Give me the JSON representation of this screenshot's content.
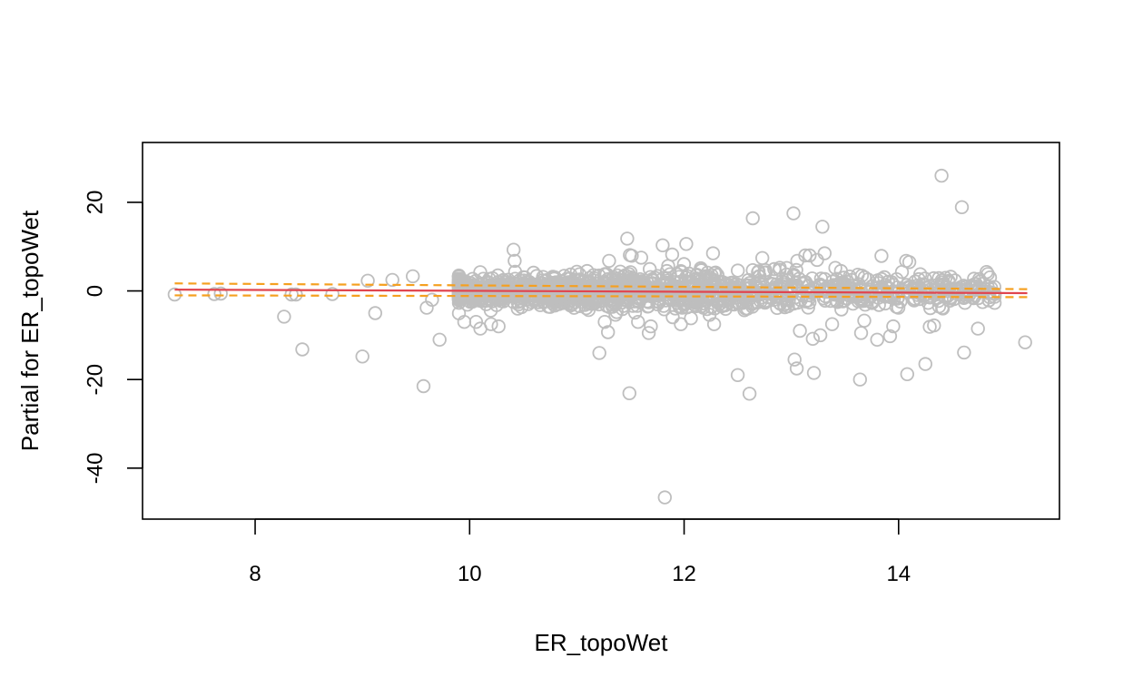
{
  "chart_data": {
    "type": "scatter",
    "title": "",
    "xlabel": "ER_topoWet",
    "ylabel": "Partial for ER_topoWet",
    "xlim": [
      6.95,
      15.5
    ],
    "ylim": [
      -51.5,
      33.5
    ],
    "x_ticks": [
      8,
      10,
      12,
      14
    ],
    "y_ticks": [
      -40,
      -20,
      0,
      20
    ],
    "grid": false,
    "legend": "none",
    "colors": {
      "points": "#bebebe",
      "fit_line": "#e0454f",
      "confidence_band": "#f5a020"
    },
    "fit_line": {
      "x": [
        7.25,
        15.2
      ],
      "y": [
        0.3,
        -0.5
      ]
    },
    "confidence_upper": {
      "x": [
        7.25,
        15.2
      ],
      "y": [
        1.7,
        0.4
      ]
    },
    "confidence_lower": {
      "x": [
        7.25,
        15.2
      ],
      "y": [
        -1.0,
        -1.4
      ]
    },
    "outliers": {
      "x": [
        7.25,
        7.62,
        7.68,
        8.27,
        8.34,
        8.38,
        8.44,
        8.72,
        9.0,
        9.05,
        9.12,
        9.28,
        9.47,
        9.57,
        9.6,
        9.65,
        9.72,
        9.95,
        10.06,
        10.1,
        10.2,
        10.27,
        10.41,
        10.42,
        11.21,
        11.26,
        11.29,
        11.3,
        11.47,
        11.49,
        11.57,
        11.6,
        11.67,
        11.69,
        11.8,
        11.82,
        11.84,
        11.97,
        12.02,
        12.27,
        12.28,
        12.5,
        12.61,
        12.64,
        12.89,
        13.02,
        13.03,
        13.05,
        13.08,
        13.13,
        13.17,
        13.2,
        13.21,
        13.24,
        13.27,
        13.29,
        13.31,
        13.38,
        13.64,
        13.65,
        13.68,
        13.8,
        13.84,
        13.92,
        13.95,
        14.08,
        14.07,
        14.1,
        14.25,
        14.29,
        14.33,
        14.4,
        14.59,
        14.61,
        14.74,
        15.18
      ],
      "y": [
        -0.8,
        -0.7,
        -0.6,
        -5.8,
        -0.8,
        -0.8,
        -13.2,
        -0.7,
        -14.8,
        2.3,
        -5.0,
        2.5,
        3.3,
        -21.5,
        -3.8,
        -2.0,
        -11.0,
        -7.0,
        -7.0,
        -8.5,
        -7.5,
        -8.0,
        9.3,
        6.8,
        -14.0,
        -7.0,
        -9.3,
        6.8,
        11.8,
        -23.1,
        -7.0,
        7.5,
        -9.5,
        -8.0,
        10.3,
        -46.6,
        4.5,
        -7.5,
        10.6,
        8.5,
        -7.5,
        -19.0,
        -23.2,
        16.4,
        4.7,
        17.5,
        -15.5,
        -17.5,
        -9.0,
        8.0,
        8.0,
        -10.8,
        -18.5,
        7.0,
        -10.0,
        14.5,
        8.5,
        -7.5,
        -20.0,
        -9.5,
        -6.7,
        -11.0,
        7.9,
        -10.2,
        -8.0,
        -18.8,
        6.8,
        6.5,
        -16.5,
        -8.1,
        -7.8,
        26.0,
        18.9,
        -13.9,
        -8.5,
        -11.6
      ]
    },
    "dense_band": {
      "count": 1400,
      "x_range": [
        9.9,
        14.9
      ],
      "y_sd": 1.6,
      "peak_x": 12.3
    }
  }
}
